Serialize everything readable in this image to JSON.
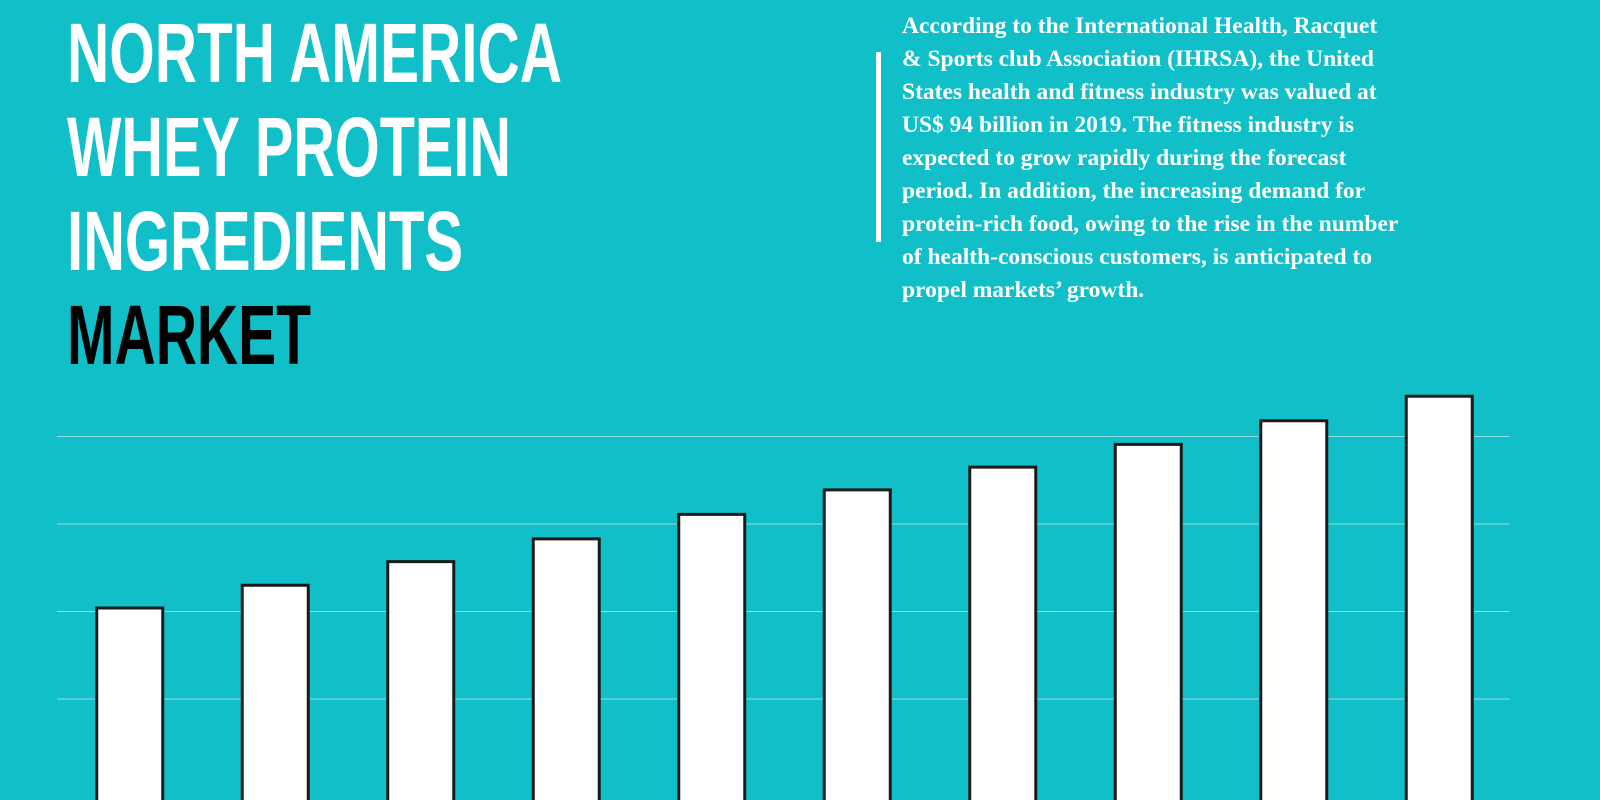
{
  "header": {
    "title_lines": [
      "NORTH AMERICA",
      "WHEY PROTEIN",
      "INGREDIENTS",
      "MARKET"
    ]
  },
  "description": {
    "lines": [
      "According to the International Health, Racquet",
      "& Sports club Association (IHRSA), the United",
      "States health and fitness industry was valued at",
      "US$ 94 billion in 2019. The fitness industry is",
      "expected to grow rapidly during the forecast",
      "period. In addition, the increasing demand for",
      "protein-rich food, owing to the rise in the number",
      "of health-conscious customers, is anticipated to",
      "propel markets’ growth."
    ]
  },
  "chart_data": {
    "type": "bar",
    "values": [
      2.04,
      2.3,
      2.57,
      2.83,
      3.11,
      3.39,
      3.65,
      3.91,
      4.18,
      4.46
    ],
    "color": "#ffffff",
    "edge_color": "#1a1a1a",
    "ylim": [
      0,
      5
    ],
    "yticks": [
      1,
      2,
      3,
      4
    ],
    "grid": true
  }
}
